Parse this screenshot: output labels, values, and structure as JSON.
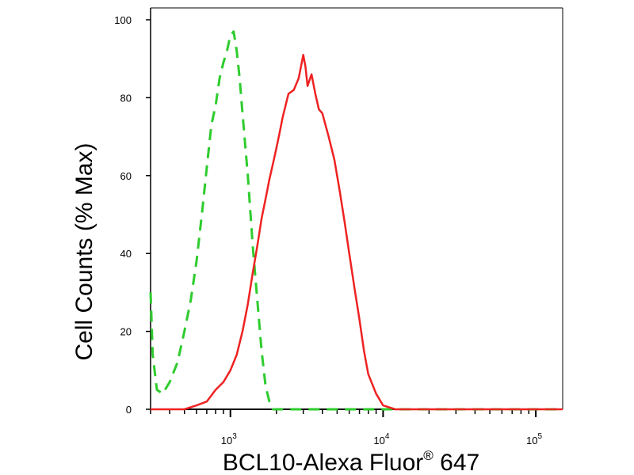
{
  "chart_data": {
    "type": "line",
    "title": "",
    "xlabel": "BCL10-Alexa Fluor",
    "xlabel_superscript": "®",
    "xlabel_suffix": " 647",
    "ylabel": "Cell Counts (% Max)",
    "x_scale": "log",
    "xlim": [
      300,
      150000
    ],
    "ylim": [
      0,
      100
    ],
    "y_ticks": [
      0,
      20,
      40,
      60,
      80,
      100
    ],
    "y_tick_labels": [
      "0",
      "20",
      "40",
      "60",
      "80",
      "100"
    ],
    "x_major_ticks": [
      1000,
      10000,
      100000
    ],
    "x_tick_labels": [
      {
        "base": "10",
        "exp": "3"
      },
      {
        "base": "10",
        "exp": "4"
      },
      {
        "base": "10",
        "exp": "5"
      }
    ],
    "grid": false,
    "legend": "none",
    "series": [
      {
        "color": "#2ecc2e",
        "style": "dashed",
        "points": [
          [
            300,
            30
          ],
          [
            310,
            14
          ],
          [
            330,
            5
          ],
          [
            360,
            4
          ],
          [
            400,
            7
          ],
          [
            450,
            12
          ],
          [
            500,
            20
          ],
          [
            550,
            28
          ],
          [
            600,
            38
          ],
          [
            650,
            50
          ],
          [
            700,
            62
          ],
          [
            750,
            73
          ],
          [
            800,
            78
          ],
          [
            850,
            85
          ],
          [
            900,
            89
          ],
          [
            950,
            92
          ],
          [
            1000,
            96
          ],
          [
            1050,
            97
          ],
          [
            1100,
            92
          ],
          [
            1150,
            85
          ],
          [
            1200,
            76
          ],
          [
            1300,
            60
          ],
          [
            1400,
            42
          ],
          [
            1500,
            28
          ],
          [
            1600,
            15
          ],
          [
            1700,
            6
          ],
          [
            1800,
            2
          ],
          [
            1900,
            0
          ],
          [
            2200,
            0
          ],
          [
            3000,
            0
          ],
          [
            5000,
            0
          ],
          [
            10000,
            0
          ],
          [
            150000,
            0
          ]
        ]
      },
      {
        "color": "#ee2222",
        "style": "solid",
        "points": [
          [
            300,
            0
          ],
          [
            400,
            0
          ],
          [
            500,
            0
          ],
          [
            600,
            1
          ],
          [
            700,
            2
          ],
          [
            800,
            5
          ],
          [
            900,
            7
          ],
          [
            1000,
            10
          ],
          [
            1100,
            14
          ],
          [
            1200,
            20
          ],
          [
            1300,
            27
          ],
          [
            1400,
            35
          ],
          [
            1500,
            42
          ],
          [
            1600,
            49
          ],
          [
            1700,
            54
          ],
          [
            1800,
            59
          ],
          [
            1900,
            63
          ],
          [
            2000,
            67
          ],
          [
            2100,
            71
          ],
          [
            2200,
            75
          ],
          [
            2400,
            81
          ],
          [
            2600,
            82
          ],
          [
            2800,
            85
          ],
          [
            2900,
            88
          ],
          [
            3000,
            91
          ],
          [
            3100,
            88
          ],
          [
            3200,
            83
          ],
          [
            3400,
            86
          ],
          [
            3600,
            81
          ],
          [
            3800,
            77
          ],
          [
            4000,
            76
          ],
          [
            4400,
            70
          ],
          [
            4800,
            64
          ],
          [
            5200,
            56
          ],
          [
            5600,
            48
          ],
          [
            6000,
            40
          ],
          [
            6500,
            31
          ],
          [
            7000,
            23
          ],
          [
            7500,
            15
          ],
          [
            8000,
            9
          ],
          [
            9000,
            4
          ],
          [
            10000,
            1
          ],
          [
            12000,
            0
          ],
          [
            18000,
            0
          ],
          [
            150000,
            0
          ]
        ]
      }
    ]
  }
}
